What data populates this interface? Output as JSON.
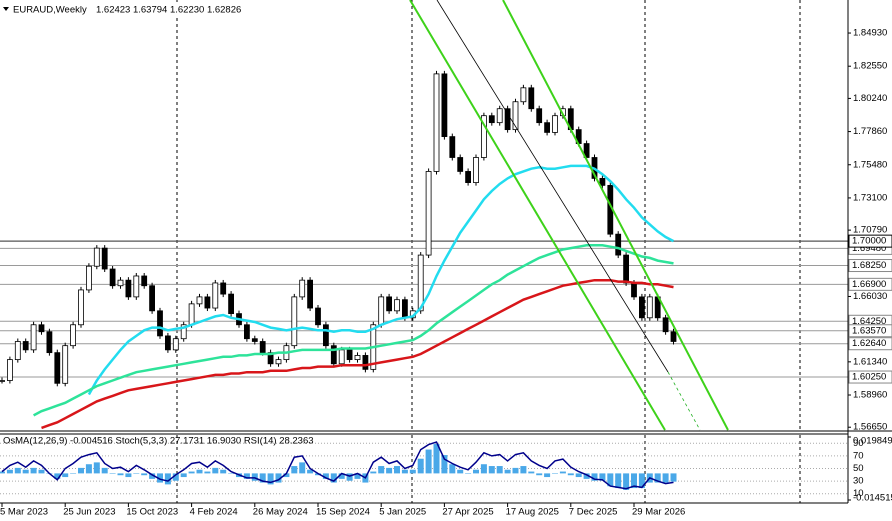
{
  "chart_data": {
    "type": "candlestick",
    "title": "EURAUD,Weekly",
    "quote": "1.62423 1.63794 1.62230 1.62826",
    "ylim": [
      1.5645,
      1.873
    ],
    "yticks": [
      {
        "value": 1.8493,
        "label": "1.84930"
      },
      {
        "value": 1.8255,
        "label": "1.82550"
      },
      {
        "value": 1.8024,
        "label": "1.80240"
      },
      {
        "value": 1.7786,
        "label": "1.77860"
      },
      {
        "value": 1.7548,
        "label": "1.75480"
      },
      {
        "value": 1.731,
        "label": "1.73100"
      },
      {
        "value": 1.7079,
        "label": "1.70790"
      },
      {
        "value": 1.6603,
        "label": "1.66030"
      },
      {
        "value": 1.6134,
        "label": "1.61340"
      },
      {
        "value": 1.5896,
        "label": "1.58960"
      },
      {
        "value": 1.5665,
        "label": "1.56650"
      }
    ],
    "levels": [
      {
        "value": 1.6948,
        "label": "1.69480"
      },
      {
        "value": 1.7,
        "label": "1.70000"
      },
      {
        "value": 1.6825,
        "label": "1.68250"
      },
      {
        "value": 1.669,
        "label": "1.66900"
      },
      {
        "value": 1.6425,
        "label": "1.64250"
      },
      {
        "value": 1.6357,
        "label": "1.63570"
      },
      {
        "value": 1.6264,
        "label": "1.62640"
      },
      {
        "value": 1.6025,
        "label": "1.60250"
      }
    ],
    "categories": [
      "5 Mar 2023",
      null,
      null,
      null,
      null,
      null,
      null,
      null,
      "25 Jun 2023",
      null,
      null,
      null,
      null,
      null,
      null,
      null,
      "15 Oct 2023",
      null,
      null,
      null,
      null,
      null,
      null,
      null,
      "4 Feb 2024",
      null,
      null,
      null,
      null,
      null,
      null,
      null,
      "26 May 2024",
      null,
      null,
      null,
      null,
      null,
      null,
      null,
      "15 Sep 2024",
      null,
      null,
      null,
      null,
      null,
      null,
      null,
      "5 Jan 2025",
      null,
      null,
      null,
      null,
      null,
      null,
      null,
      "27 Apr 2025",
      null,
      null,
      null,
      null,
      null,
      null,
      null,
      "17 Aug 2025",
      null,
      null,
      null,
      null,
      null,
      null,
      null,
      "7 Dec 2025",
      null,
      null,
      null,
      null,
      null,
      null,
      null,
      "29 Mar 2026",
      null,
      null,
      null,
      null,
      null
    ],
    "close": [
      1.6,
      1.615,
      1.628,
      1.622,
      1.64,
      1.635,
      1.62,
      1.598,
      1.625,
      1.64,
      1.665,
      1.682,
      1.695,
      1.68,
      1.668,
      1.672,
      1.66,
      1.675,
      1.668,
      1.65,
      1.632,
      1.622,
      1.63,
      1.64,
      1.655,
      1.66,
      1.652,
      1.67,
      1.662,
      1.648,
      1.64,
      1.63,
      1.628,
      1.62,
      1.612,
      1.615,
      1.625,
      1.66,
      1.672,
      1.652,
      1.64,
      1.625,
      1.612,
      1.622,
      1.615,
      1.618,
      1.608,
      1.64,
      1.66,
      1.65,
      1.658,
      1.645,
      1.65,
      1.69,
      1.75,
      1.82,
      1.775,
      1.76,
      1.75,
      1.742,
      1.76,
      1.79,
      1.785,
      1.795,
      1.78,
      1.8,
      1.81,
      1.795,
      1.785,
      1.778,
      1.79,
      1.795,
      1.78,
      1.77,
      1.76,
      1.745,
      1.74,
      1.705,
      1.69,
      1.67,
      1.66,
      1.645,
      1.66,
      1.645,
      1.635,
      1.628
    ],
    "ma": [
      {
        "color": "#22dcef",
        "values": [
          null,
          null,
          null,
          null,
          null,
          null,
          null,
          null,
          null,
          null,
          null,
          1.59,
          1.6,
          1.608,
          1.615,
          1.622,
          1.628,
          1.632,
          1.636,
          1.638,
          1.638,
          1.636,
          1.637,
          1.638,
          1.64,
          1.642,
          1.644,
          1.646,
          1.647,
          1.645,
          1.644,
          1.643,
          1.642,
          1.64,
          1.638,
          1.637,
          1.636,
          1.637,
          1.638,
          1.637,
          1.636,
          1.636,
          1.635,
          1.636,
          1.636,
          1.635,
          1.635,
          1.637,
          1.64,
          1.642,
          1.644,
          1.645,
          1.646,
          1.652,
          1.662,
          1.675,
          1.686,
          1.696,
          1.706,
          1.714,
          1.722,
          1.73,
          1.736,
          1.741,
          1.745,
          1.748,
          1.75,
          1.752,
          1.753,
          1.752,
          1.752,
          1.753,
          1.754,
          1.754,
          1.754,
          1.752,
          1.748,
          1.743,
          1.737,
          1.73,
          1.724,
          1.717,
          1.712,
          1.707,
          1.703,
          1.7
        ]
      },
      {
        "color": "#2ee39a",
        "values": [
          null,
          null,
          null,
          null,
          1.575,
          1.578,
          1.58,
          1.582,
          1.584,
          1.587,
          1.59,
          1.593,
          1.596,
          1.598,
          1.6,
          1.602,
          1.604,
          1.606,
          1.607,
          1.608,
          1.609,
          1.61,
          1.611,
          1.612,
          1.613,
          1.614,
          1.615,
          1.616,
          1.617,
          1.617,
          1.618,
          1.618,
          1.619,
          1.619,
          1.619,
          1.62,
          1.62,
          1.621,
          1.622,
          1.622,
          1.622,
          1.622,
          1.622,
          1.623,
          1.623,
          1.623,
          1.623,
          1.624,
          1.625,
          1.626,
          1.627,
          1.628,
          1.629,
          1.632,
          1.636,
          1.641,
          1.645,
          1.649,
          1.653,
          1.657,
          1.661,
          1.665,
          1.669,
          1.672,
          1.676,
          1.679,
          1.682,
          1.685,
          1.688,
          1.69,
          1.692,
          1.694,
          1.695,
          1.696,
          1.697,
          1.697,
          1.697,
          1.696,
          1.695,
          1.693,
          1.691,
          1.689,
          1.688,
          1.686,
          1.685,
          1.684
        ]
      },
      {
        "color": "#d8161a",
        "values": [
          null,
          null,
          null,
          null,
          null,
          1.566,
          1.568,
          1.57,
          1.573,
          1.576,
          1.579,
          1.582,
          1.585,
          1.587,
          1.589,
          1.591,
          1.593,
          1.594,
          1.595,
          1.596,
          1.597,
          1.598,
          1.599,
          1.6,
          1.601,
          1.602,
          1.603,
          1.604,
          1.604,
          1.605,
          1.605,
          1.606,
          1.606,
          1.606,
          1.607,
          1.607,
          1.607,
          1.608,
          1.609,
          1.609,
          1.61,
          1.61,
          1.61,
          1.611,
          1.611,
          1.611,
          1.611,
          1.612,
          1.613,
          1.614,
          1.615,
          1.616,
          1.617,
          1.619,
          1.622,
          1.625,
          1.628,
          1.631,
          1.634,
          1.637,
          1.64,
          1.643,
          1.646,
          1.649,
          1.652,
          1.655,
          1.658,
          1.66,
          1.662,
          1.664,
          1.666,
          1.668,
          1.669,
          1.67,
          1.671,
          1.672,
          1.672,
          1.672,
          1.671,
          1.671,
          1.67,
          1.67,
          1.669,
          1.669,
          1.668,
          1.667
        ]
      }
    ],
    "indicator": {
      "label": "OsMA(12,26,9) -0.004516  Stoch(5,3,3) 27.1731 16.9030  RSI(14) 28.2363",
      "osma_color": "#4aa8e8",
      "osma_lim": [
        -0.014515,
        0.019849
      ],
      "osma_ticks": [
        0.019849,
        -0.014515
      ],
      "osma": [
        0.001,
        0.002,
        0.003,
        0.002,
        0.003,
        0.002,
        0,
        -0.003,
        -0.002,
        0,
        0.003,
        0.005,
        0.006,
        0.003,
        0,
        -0.001,
        -0.002,
        0,
        -0.001,
        -0.003,
        -0.005,
        -0.006,
        -0.004,
        -0.002,
        0.001,
        0.002,
        0.001,
        0.003,
        0.002,
        0,
        -0.002,
        -0.003,
        -0.004,
        -0.005,
        -0.006,
        -0.005,
        -0.002,
        0.004,
        0.006,
        0.002,
        -0.001,
        -0.003,
        -0.005,
        -0.003,
        -0.004,
        -0.003,
        -0.005,
        0.001,
        0.004,
        0.003,
        0.004,
        0.002,
        0.002,
        0.008,
        0.013,
        0.016,
        0.01,
        0.005,
        0.002,
        0,
        0.002,
        0.005,
        0.004,
        0.004,
        0.002,
        0.003,
        0.004,
        0.001,
        -0.001,
        -0.002,
        0,
        0.001,
        -0.001,
        -0.002,
        -0.003,
        -0.004,
        -0.004,
        -0.007,
        -0.008,
        -0.009,
        -0.008,
        -0.008,
        -0.005,
        -0.005,
        -0.005,
        -0.0045
      ],
      "rsi_color": "#00008b",
      "rsi_lim": [
        0,
        100
      ],
      "rsi_ticks": [
        90,
        70,
        50,
        30,
        10
      ],
      "rsi": [
        45,
        55,
        60,
        52,
        62,
        55,
        42,
        32,
        50,
        58,
        68,
        72,
        75,
        58,
        50,
        52,
        45,
        55,
        48,
        40,
        33,
        30,
        40,
        48,
        58,
        60,
        52,
        62,
        55,
        45,
        40,
        35,
        35,
        30,
        28,
        32,
        42,
        68,
        70,
        50,
        42,
        35,
        30,
        42,
        38,
        42,
        35,
        60,
        68,
        58,
        62,
        50,
        55,
        80,
        88,
        92,
        65,
        58,
        52,
        48,
        60,
        75,
        70,
        72,
        62,
        72,
        75,
        62,
        55,
        50,
        62,
        65,
        52,
        45,
        40,
        33,
        32,
        22,
        20,
        18,
        22,
        20,
        35,
        30,
        26,
        28
      ]
    }
  }
}
